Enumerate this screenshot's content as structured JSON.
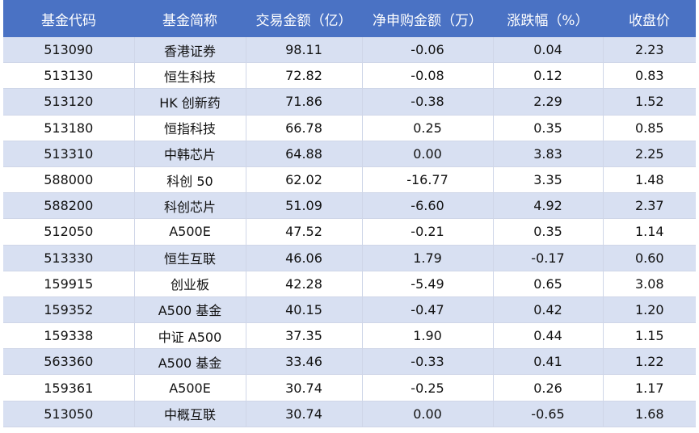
{
  "table": {
    "headers": [
      "基金代码",
      "基金简称",
      "交易金额（亿）",
      "净申购金额（万）",
      "涨跌幅（%）",
      "收盘价"
    ],
    "rows": [
      [
        "513090",
        "香港证券",
        "98.11",
        "-0.06",
        "0.04",
        "2.23"
      ],
      [
        "513130",
        "恒生科技",
        "72.82",
        "-0.08",
        "0.12",
        "0.83"
      ],
      [
        "513120",
        "HK 创新药",
        "71.86",
        "-0.38",
        "2.29",
        "1.52"
      ],
      [
        "513180",
        "恒指科技",
        "66.78",
        "0.25",
        "0.35",
        "0.85"
      ],
      [
        "513310",
        "中韩芯片",
        "64.88",
        "0.00",
        "3.83",
        "2.25"
      ],
      [
        "588000",
        "科创 50",
        "62.02",
        "-16.77",
        "3.35",
        "1.48"
      ],
      [
        "588200",
        "科创芯片",
        "51.09",
        "-6.60",
        "4.92",
        "2.37"
      ],
      [
        "512050",
        "A500E",
        "47.52",
        "-0.21",
        "0.35",
        "1.14"
      ],
      [
        "513330",
        "恒生互联",
        "46.06",
        "1.79",
        "-0.17",
        "0.60"
      ],
      [
        "159915",
        "创业板",
        "42.28",
        "-5.49",
        "0.65",
        "3.08"
      ],
      [
        "159352",
        "A500 基金",
        "40.15",
        "-0.47",
        "0.42",
        "1.20"
      ],
      [
        "159338",
        "中证 A500",
        "37.35",
        "1.90",
        "0.44",
        "1.15"
      ],
      [
        "563360",
        "A500 基金",
        "33.46",
        "-0.33",
        "0.41",
        "1.22"
      ],
      [
        "159361",
        "A500E",
        "30.74",
        "-0.25",
        "0.26",
        "1.17"
      ],
      [
        "513050",
        "中概互联",
        "30.74",
        "0.00",
        "-0.65",
        "1.68"
      ]
    ]
  },
  "colors": {
    "header_bg": "#4a72c4",
    "header_text": "#ffffff",
    "band_row": "#d8e0f2",
    "plain_row": "#ffffff"
  }
}
